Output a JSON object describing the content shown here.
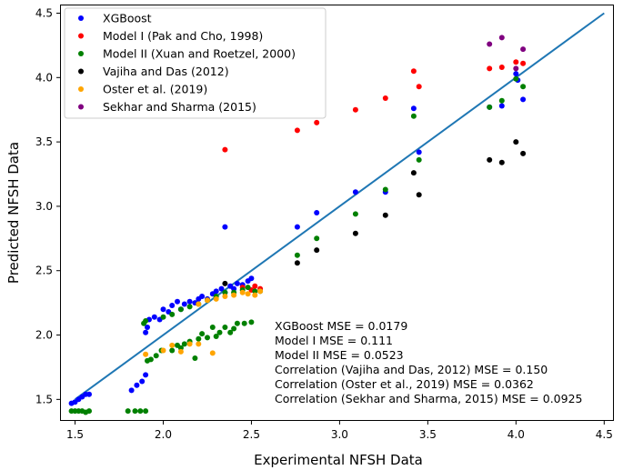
{
  "chart_data": {
    "type": "scatter",
    "xlabel": "Experimental NFSH Data",
    "ylabel": "Predicted NFSH Data",
    "xlim": [
      1.42,
      4.55
    ],
    "ylim": [
      1.34,
      4.56
    ],
    "xticks": [
      "1.5",
      "2.0",
      "2.5",
      "3.0",
      "3.5",
      "4.0",
      "4.5"
    ],
    "yticks": [
      "1.5",
      "2.0",
      "2.5",
      "3.0",
      "3.5",
      "4.0",
      "4.5"
    ],
    "grid": false,
    "legend_position": "top-left",
    "reference_line": {
      "x": [
        1.5,
        4.5
      ],
      "y": [
        1.5,
        4.5
      ],
      "color": "#1f77b4"
    },
    "series": [
      {
        "name": "XGBoost",
        "color": "#0000ff",
        "points": [
          [
            1.48,
            1.47
          ],
          [
            1.5,
            1.48
          ],
          [
            1.52,
            1.5
          ],
          [
            1.54,
            1.52
          ],
          [
            1.56,
            1.54
          ],
          [
            1.58,
            1.54
          ],
          [
            1.82,
            1.57
          ],
          [
            1.85,
            1.61
          ],
          [
            1.88,
            1.64
          ],
          [
            1.9,
            1.69
          ],
          [
            1.9,
            2.02
          ],
          [
            1.91,
            2.06
          ],
          [
            1.92,
            2.12
          ],
          [
            1.95,
            2.14
          ],
          [
            1.98,
            2.12
          ],
          [
            2.0,
            2.2
          ],
          [
            2.03,
            2.18
          ],
          [
            2.05,
            2.23
          ],
          [
            2.08,
            2.26
          ],
          [
            2.1,
            2.2
          ],
          [
            2.12,
            2.24
          ],
          [
            2.15,
            2.26
          ],
          [
            2.18,
            2.25
          ],
          [
            2.2,
            2.28
          ],
          [
            2.22,
            2.3
          ],
          [
            2.25,
            2.28
          ],
          [
            2.28,
            2.32
          ],
          [
            2.3,
            2.34
          ],
          [
            2.33,
            2.36
          ],
          [
            2.35,
            2.33
          ],
          [
            2.38,
            2.38
          ],
          [
            2.4,
            2.36
          ],
          [
            2.42,
            2.4
          ],
          [
            2.45,
            2.39
          ],
          [
            2.48,
            2.42
          ],
          [
            2.5,
            2.44
          ],
          [
            2.35,
            2.84
          ],
          [
            2.76,
            2.84
          ],
          [
            2.87,
            2.95
          ],
          [
            3.09,
            3.11
          ],
          [
            3.26,
            3.11
          ],
          [
            3.42,
            3.76
          ],
          [
            3.45,
            3.42
          ],
          [
            3.85,
            3.77
          ],
          [
            3.92,
            3.78
          ],
          [
            4.0,
            4.03
          ],
          [
            4.01,
            3.98
          ],
          [
            4.04,
            3.83
          ]
        ]
      },
      {
        "name": "Model I (Pak and Cho, 1998)",
        "color": "#ff0000",
        "points": [
          [
            2.35,
            3.44
          ],
          [
            2.76,
            3.59
          ],
          [
            2.87,
            3.65
          ],
          [
            3.09,
            3.75
          ],
          [
            3.26,
            3.84
          ],
          [
            3.42,
            4.05
          ],
          [
            3.45,
            3.93
          ],
          [
            3.85,
            4.07
          ],
          [
            3.92,
            4.08
          ],
          [
            4.0,
            4.12
          ],
          [
            4.04,
            4.11
          ],
          [
            2.45,
            2.37
          ],
          [
            2.5,
            2.35
          ],
          [
            2.55,
            2.36
          ],
          [
            2.52,
            2.38
          ]
        ]
      },
      {
        "name": "Model II (Xuan and Roetzel, 2000)",
        "color": "#008000",
        "points": [
          [
            1.48,
            1.41
          ],
          [
            1.5,
            1.41
          ],
          [
            1.52,
            1.41
          ],
          [
            1.54,
            1.41
          ],
          [
            1.56,
            1.4
          ],
          [
            1.58,
            1.41
          ],
          [
            1.8,
            1.41
          ],
          [
            1.84,
            1.41
          ],
          [
            1.87,
            1.41
          ],
          [
            1.9,
            1.41
          ],
          [
            1.89,
            2.09
          ],
          [
            1.9,
            2.11
          ],
          [
            1.91,
            1.8
          ],
          [
            1.93,
            1.81
          ],
          [
            1.96,
            1.84
          ],
          [
            1.99,
            1.88
          ],
          [
            2.05,
            1.88
          ],
          [
            2.08,
            1.92
          ],
          [
            2.1,
            1.9
          ],
          [
            2.12,
            1.93
          ],
          [
            2.15,
            1.95
          ],
          [
            2.18,
            1.82
          ],
          [
            2.2,
            1.97
          ],
          [
            2.22,
            2.01
          ],
          [
            2.25,
            1.98
          ],
          [
            2.28,
            2.06
          ],
          [
            2.3,
            1.99
          ],
          [
            2.32,
            2.02
          ],
          [
            2.35,
            2.06
          ],
          [
            2.38,
            2.02
          ],
          [
            2.4,
            2.05
          ],
          [
            2.42,
            2.09
          ],
          [
            2.46,
            2.09
          ],
          [
            2.5,
            2.1
          ],
          [
            2.0,
            2.14
          ],
          [
            2.05,
            2.16
          ],
          [
            2.1,
            2.2
          ],
          [
            2.15,
            2.22
          ],
          [
            2.2,
            2.24
          ],
          [
            2.25,
            2.27
          ],
          [
            2.3,
            2.3
          ],
          [
            2.35,
            2.33
          ],
          [
            2.4,
            2.33
          ],
          [
            2.45,
            2.35
          ],
          [
            2.48,
            2.37
          ],
          [
            2.52,
            2.34
          ],
          [
            2.55,
            2.34
          ],
          [
            2.76,
            2.62
          ],
          [
            2.87,
            2.75
          ],
          [
            3.09,
            2.94
          ],
          [
            3.26,
            3.13
          ],
          [
            3.42,
            3.7
          ],
          [
            3.45,
            3.36
          ],
          [
            3.85,
            3.77
          ],
          [
            3.92,
            3.82
          ],
          [
            4.0,
            3.99
          ],
          [
            4.04,
            3.93
          ]
        ]
      },
      {
        "name": "Vajiha and Das (2012)",
        "color": "#000000",
        "points": [
          [
            2.35,
            2.4
          ],
          [
            2.76,
            2.56
          ],
          [
            2.87,
            2.66
          ],
          [
            3.09,
            2.79
          ],
          [
            3.26,
            2.93
          ],
          [
            3.42,
            3.26
          ],
          [
            3.45,
            3.09
          ],
          [
            3.85,
            3.36
          ],
          [
            3.92,
            3.34
          ],
          [
            4.0,
            3.5
          ],
          [
            4.04,
            3.41
          ]
        ]
      },
      {
        "name": "Oster et al. (2019)",
        "color": "#ffa500",
        "points": [
          [
            1.9,
            1.85
          ],
          [
            2.0,
            1.88
          ],
          [
            2.05,
            1.92
          ],
          [
            2.1,
            1.87
          ],
          [
            2.15,
            1.93
          ],
          [
            2.2,
            1.93
          ],
          [
            2.28,
            1.86
          ],
          [
            2.2,
            2.24
          ],
          [
            2.25,
            2.27
          ],
          [
            2.3,
            2.28
          ],
          [
            2.35,
            2.3
          ],
          [
            2.4,
            2.31
          ],
          [
            2.45,
            2.33
          ],
          [
            2.48,
            2.32
          ],
          [
            2.52,
            2.31
          ],
          [
            2.55,
            2.34
          ]
        ]
      },
      {
        "name": "Sekhar and Sharma (2015)",
        "color": "#800080",
        "points": [
          [
            3.85,
            4.26
          ],
          [
            3.92,
            4.31
          ],
          [
            4.0,
            4.07
          ],
          [
            4.04,
            4.22
          ]
        ]
      }
    ],
    "annotations": [
      "XGBoost MSE = 0.0179",
      "Model I MSE = 0.111",
      "Model II MSE = 0.0523",
      "Correlation (Vajiha and Das, 2012) MSE = 0.150",
      "Correlation (Oster et al., 2019) MSE = 0.0362",
      "Correlation (Sekhar and Sharma, 2015) MSE = 0.0925"
    ]
  }
}
